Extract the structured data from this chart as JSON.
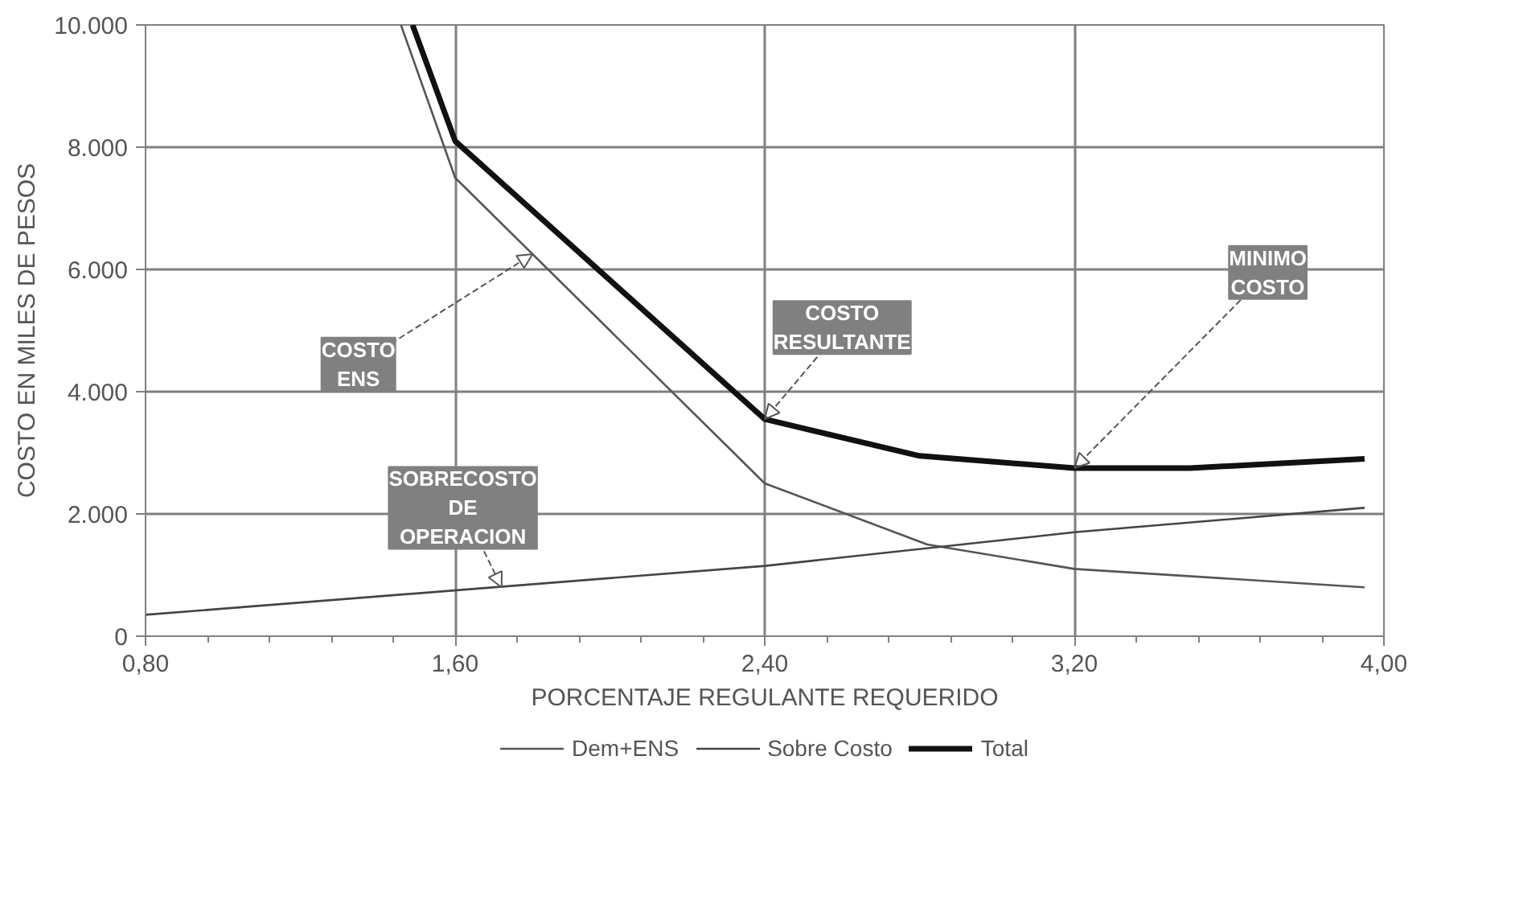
{
  "chart_data": {
    "type": "line",
    "xlabel": "PORCENTAJE REGULANTE REQUERIDO",
    "ylabel": "COSTO EN MILES DE PESOS",
    "series": [
      {
        "name": "Dem+ENS",
        "color": "#555555",
        "x": [
          1.46,
          1.6,
          2.4,
          2.82,
          3.2,
          3.95
        ],
        "values": [
          10000,
          7500,
          2500,
          1500,
          1100,
          800
        ]
      },
      {
        "name": "Sobre Costo",
        "color": "#444444",
        "x": [
          0.8,
          2.4,
          3.2,
          3.95
        ],
        "values": [
          350,
          1150,
          1700,
          2100
        ]
      },
      {
        "name": "Total",
        "color": "#111111",
        "x": [
          1.49,
          1.6,
          2.4,
          2.8,
          3.2,
          3.5,
          3.95
        ],
        "values": [
          10000,
          8100,
          3550,
          2950,
          2750,
          2750,
          2900
        ]
      }
    ],
    "xlim": [
      0.8,
      4.0
    ],
    "ylim": [
      0,
      10000
    ],
    "xticks": [
      {
        "value": 0.8,
        "label": "0,80"
      },
      {
        "value": 1.6,
        "label": "1,60"
      },
      {
        "value": 2.4,
        "label": "2,40"
      },
      {
        "value": 3.2,
        "label": "3,20"
      },
      {
        "value": 4.0,
        "label": "4,00"
      }
    ],
    "yticks": [
      {
        "value": 0,
        "label": "0"
      },
      {
        "value": 2000,
        "label": "2.000"
      },
      {
        "value": 4000,
        "label": "4.000"
      },
      {
        "value": 6000,
        "label": "6.000"
      },
      {
        "value": 8000,
        "label": "8.000"
      },
      {
        "value": 10000,
        "label": "10.000"
      }
    ],
    "annotations": [
      {
        "text": "COSTO\nENS",
        "x": 1.8,
        "y": 6250
      },
      {
        "text": "COSTO\nRESULTANTE",
        "x": 2.4,
        "y": 3550
      },
      {
        "text": "MINIMO\nCOSTO",
        "x": 3.2,
        "y": 2750
      },
      {
        "text": "SOBRECOSTO\nDE\nOPERACION",
        "x": 1.72,
        "y": 800
      }
    ],
    "grid": true,
    "legend": "bottom",
    "line_style": "solid",
    "marker": "none"
  }
}
